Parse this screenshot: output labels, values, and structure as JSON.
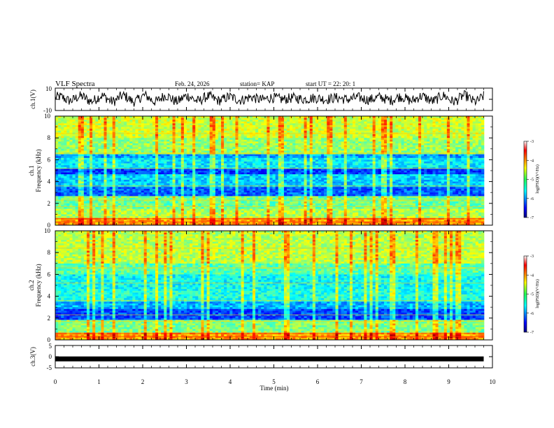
{
  "header": {
    "title": "VLF Spectra",
    "date": "Feb. 24, 2026",
    "station": "station= KAP",
    "start_ut": "start  UT  =   22: 20: 1"
  },
  "chart_data": [
    {
      "id": "ch1-waveform",
      "type": "line",
      "ylabel": "ch.1(V)",
      "ylim": [
        -10,
        10
      ],
      "yticks": [
        "10",
        "-10"
      ],
      "description_series": "oscillating voltage trace, amplitude about 3 to 8 V"
    },
    {
      "id": "ch1-spectrogram",
      "type": "heatmap",
      "ylabel_channel": "ch.1",
      "ylabel": "Frequency  (kHz)",
      "ylim": [
        0,
        10
      ],
      "yticks": [
        "0",
        "2",
        "4",
        "6",
        "8",
        "10"
      ],
      "colorbar": {
        "label": "log(PSD)(V²/Hz)",
        "ticks": [
          "-3",
          "-4",
          "-5",
          "-6",
          "-7"
        ],
        "range": [
          -7,
          -3
        ]
      }
    },
    {
      "id": "ch2-spectrogram",
      "type": "heatmap",
      "ylabel_channel": "ch.2",
      "ylabel": "Frequency  (kHz)",
      "ylim": [
        0,
        10
      ],
      "yticks": [
        "0",
        "2",
        "4",
        "6",
        "8",
        "10"
      ],
      "colorbar": {
        "label": "log(PSD)(V²/Hz)",
        "ticks": [
          "-3",
          "-4",
          "-5",
          "-6",
          "-7"
        ],
        "range": [
          -7,
          -3
        ]
      }
    },
    {
      "id": "ch3-waveform",
      "type": "line",
      "ylabel": "ch.3(V)",
      "ylim": [
        -5,
        5
      ],
      "yticks": [
        "5",
        "0",
        "-5"
      ],
      "constant_value": -1
    }
  ],
  "x_axis": {
    "label": "Time  (min)",
    "xlim": [
      0,
      10
    ],
    "ticks": [
      "0",
      "1",
      "2",
      "3",
      "4",
      "5",
      "6",
      "7",
      "8",
      "9",
      "10"
    ]
  }
}
